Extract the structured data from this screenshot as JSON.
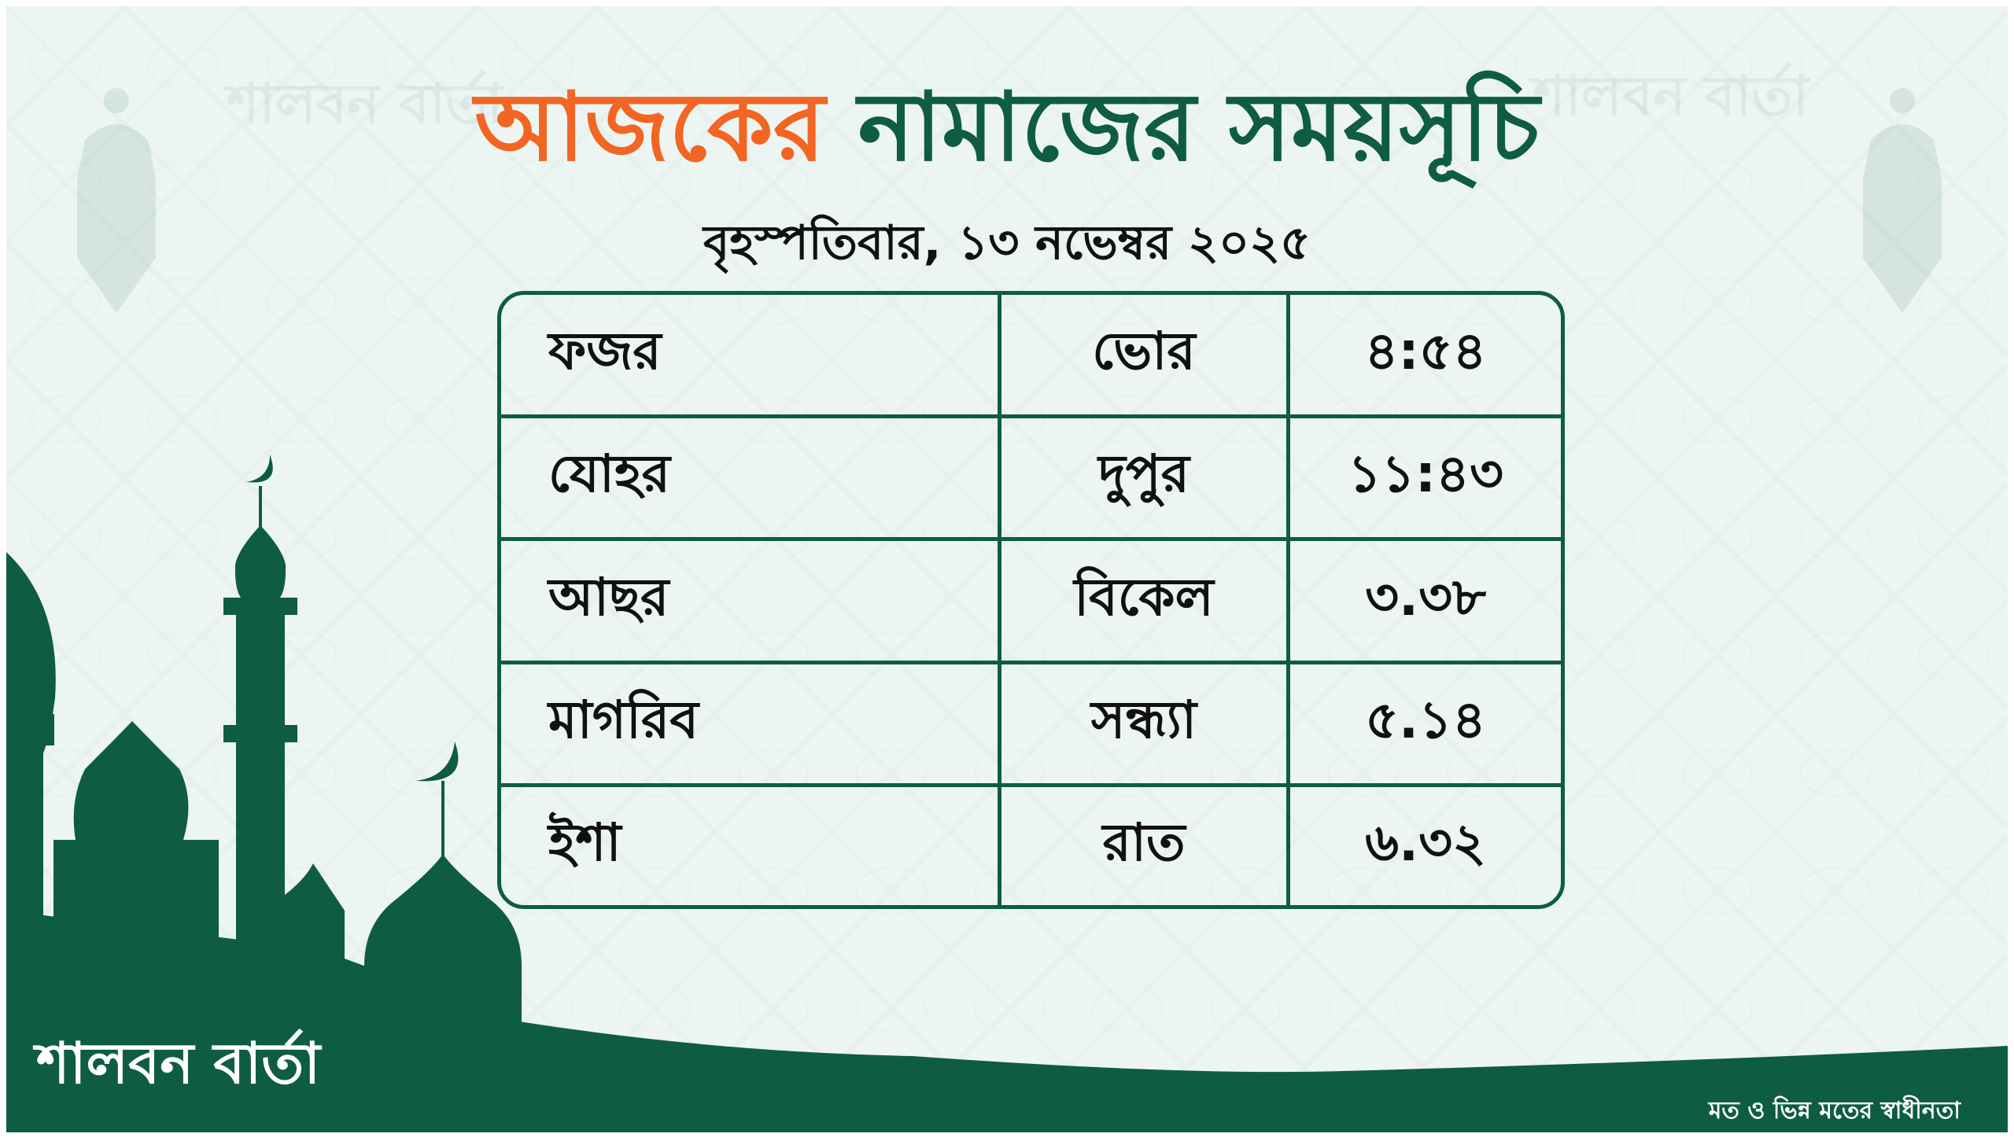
{
  "title": {
    "part1": "আজকের",
    "part2": "নামাজের সময়সূচি"
  },
  "date": "বৃহস্পতিবার, ১৩ নভেম্বর ২০২৫",
  "prayers": [
    {
      "name": "ফজর",
      "period": "ভোর",
      "time": "৪:৫৪"
    },
    {
      "name": "যোহর",
      "period": "দুপুর",
      "time": "১১:৪৩"
    },
    {
      "name": "আছর",
      "period": "বিকেল",
      "time": "৩.৩৮"
    },
    {
      "name": "মাগরিব",
      "period": "সন্ধ্যা",
      "time": "৫.১৪"
    },
    {
      "name": "ইশা",
      "period": "রাত",
      "time": "৬.৩২"
    }
  ],
  "brand": {
    "logo": "শালবন বার্তা",
    "tagline": "মত ও ভিন্ন মতের স্বাধীনতা"
  },
  "colors": {
    "green": "#0f5c45",
    "orange": "#f26522",
    "background": "#edf5f3"
  }
}
